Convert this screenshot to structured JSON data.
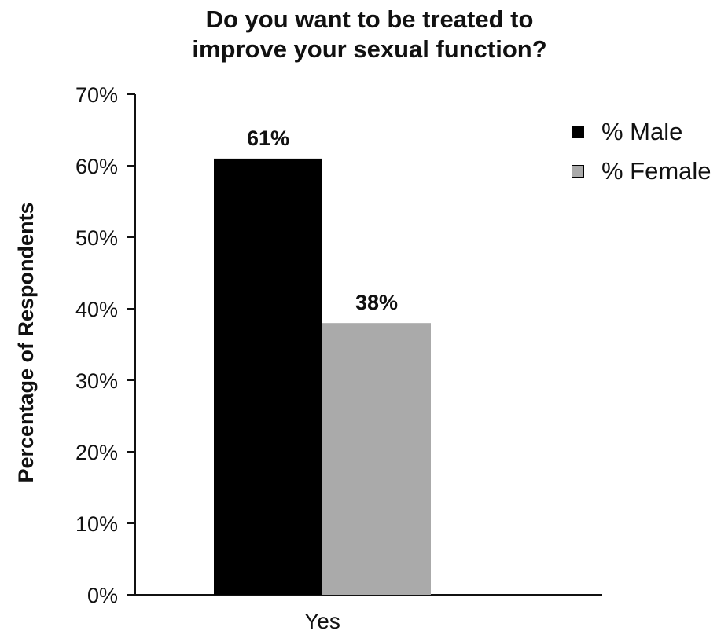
{
  "chart_data": {
    "type": "bar",
    "title_lines": [
      "Do you want to be treated to",
      "improve your sexual function?"
    ],
    "categories": [
      "Yes"
    ],
    "series": [
      {
        "name": "% Male",
        "values": [
          61
        ],
        "label": "61%",
        "color": "#000000"
      },
      {
        "name": "% Female",
        "values": [
          38
        ],
        "label": "38%",
        "color": "#aaaaaa"
      }
    ],
    "xlabel": "",
    "ylabel": "Percentage of Respondents",
    "ylim": [
      0,
      70
    ],
    "yticks": [
      0,
      10,
      20,
      30,
      40,
      50,
      60,
      70
    ],
    "ytick_labels": [
      "0%",
      "10%",
      "20%",
      "30%",
      "40%",
      "50%",
      "60%",
      "70%"
    ],
    "grid": false,
    "legend_position": "top-right"
  }
}
